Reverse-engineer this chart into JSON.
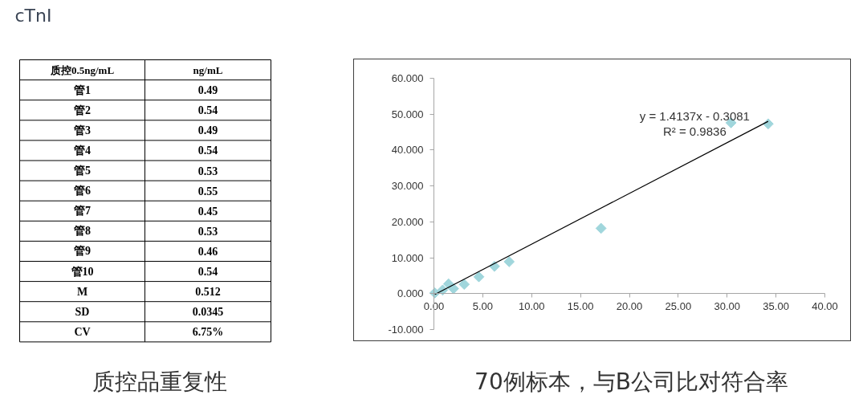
{
  "chart_data": [
    {
      "type": "other",
      "title": "质控品重复性",
      "annotations": [
        "cTnI"
      ],
      "xlabel": "质控0.5ng/mL",
      "ylabel": "ng/mL",
      "categories": [
        "管1",
        "管2",
        "管3",
        "管4",
        "管5",
        "管6",
        "管7",
        "管8",
        "管9",
        "管10",
        "M",
        "SD",
        "CV"
      ],
      "value_labels": [
        "0.49",
        "0.54",
        "0.49",
        "0.54",
        "0.53",
        "0.55",
        "0.45",
        "0.53",
        "0.46",
        "0.54",
        "0.512",
        "0.0345",
        "6.75%"
      ]
    },
    {
      "type": "scatter",
      "title": "70例标本，与B公司比对符合率",
      "grid": false,
      "xlim": [
        0,
        40
      ],
      "ylim": [
        -10,
        60
      ],
      "xticks": [
        {
          "value": 0,
          "label": "0.00"
        },
        {
          "value": 5,
          "label": "5.00"
        },
        {
          "value": 10,
          "label": "10.00"
        },
        {
          "value": 15,
          "label": "15.00"
        },
        {
          "value": 20,
          "label": "20.00"
        },
        {
          "value": 25,
          "label": "25.00"
        },
        {
          "value": 30,
          "label": "30.00"
        },
        {
          "value": 35,
          "label": "35.00"
        },
        {
          "value": 40,
          "label": "40.00"
        }
      ],
      "yticks": [
        {
          "value": -10,
          "label": "-10.000"
        },
        {
          "value": 0,
          "label": "0.000"
        },
        {
          "value": 10,
          "label": "10.000"
        },
        {
          "value": 20,
          "label": "20.000"
        },
        {
          "value": 30,
          "label": "30.000"
        },
        {
          "value": 40,
          "label": "40.000"
        },
        {
          "value": 50,
          "label": "50.000"
        },
        {
          "value": 60,
          "label": "60.000"
        }
      ],
      "series": [
        {
          "type": "scatter",
          "marker": "diamond",
          "color": "#a0d6dc",
          "x": [
            0.1,
            0.9,
            1.5,
            2.0,
            3.1,
            4.6,
            6.2,
            7.7,
            17.1,
            30.4,
            34.2
          ],
          "values": [
            0.2,
            1.0,
            2.7,
            1.4,
            2.6,
            4.7,
            7.6,
            8.9,
            18.2,
            47.6,
            47.3
          ]
        },
        {
          "type": "line",
          "color": "#000000",
          "x": [
            0.1,
            34.2
          ],
          "values": [
            -0.2,
            48.0
          ]
        }
      ],
      "annotations": [
        "y = 1.4137x - 0.3081",
        "R² = 0.9836"
      ]
    }
  ]
}
